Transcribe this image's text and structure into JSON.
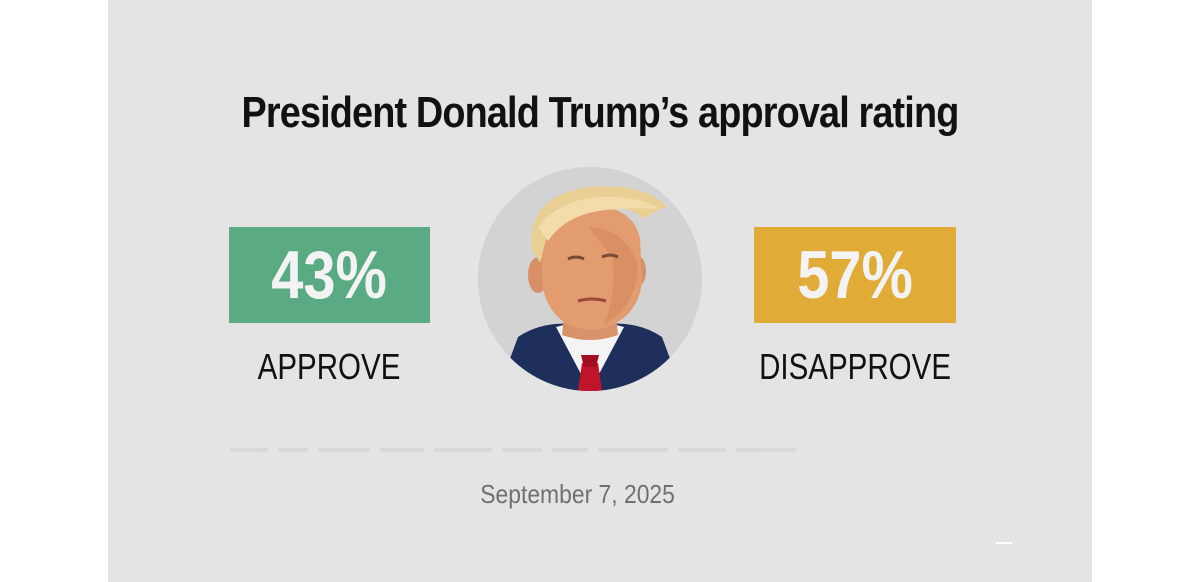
{
  "title": "President Donald Trump’s approval rating",
  "approve": {
    "value": "43%",
    "label": "APPROVE",
    "color": "#5aaa83"
  },
  "disapprove": {
    "value": "57%",
    "label": "DISAPPROVE",
    "color": "#e1ab38"
  },
  "date": "September 7, 2025",
  "portrait": {
    "icon": "president-portrait"
  }
}
